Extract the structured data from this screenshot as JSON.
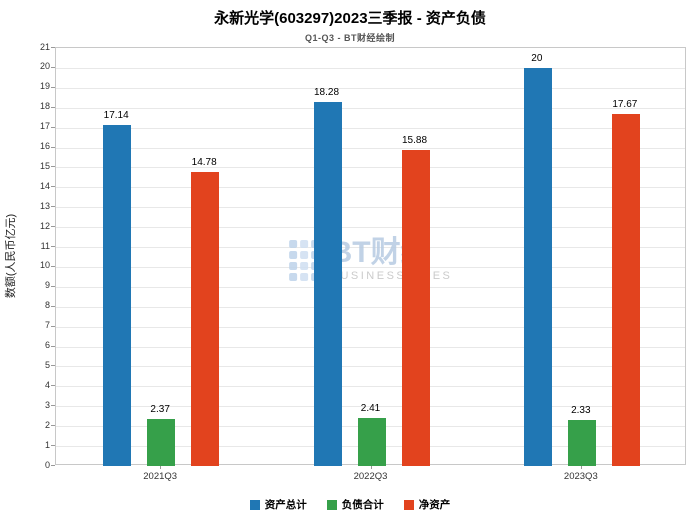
{
  "chart_data": {
    "type": "bar",
    "title": "永新光学(603297)2023三季报 - 资产负债",
    "subtitle": "Q1-Q3 - BT财经绘制",
    "ylabel": "数额(人民币亿元)",
    "categories": [
      "2021Q3",
      "2022Q3",
      "2023Q3"
    ],
    "series": [
      {
        "name": "资产总计",
        "color": "#2077b4",
        "values": [
          17.14,
          18.28,
          20
        ],
        "labels": [
          "17.14",
          "18.28",
          "20"
        ]
      },
      {
        "name": "负债合计",
        "color": "#36a04a",
        "values": [
          2.37,
          2.41,
          2.33
        ],
        "labels": [
          "2.37",
          "2.41",
          "2.33"
        ]
      },
      {
        "name": "净资产",
        "color": "#e2431e",
        "values": [
          14.78,
          15.88,
          17.67
        ],
        "labels": [
          "14.78",
          "15.88",
          "17.67"
        ]
      }
    ],
    "ylim": [
      0,
      21
    ],
    "ytick_step": 1,
    "grid": "horizontal",
    "legend_position": "bottom"
  },
  "watermark": {
    "text": "BT财经",
    "subtext": "BUSINESSTIMES"
  }
}
